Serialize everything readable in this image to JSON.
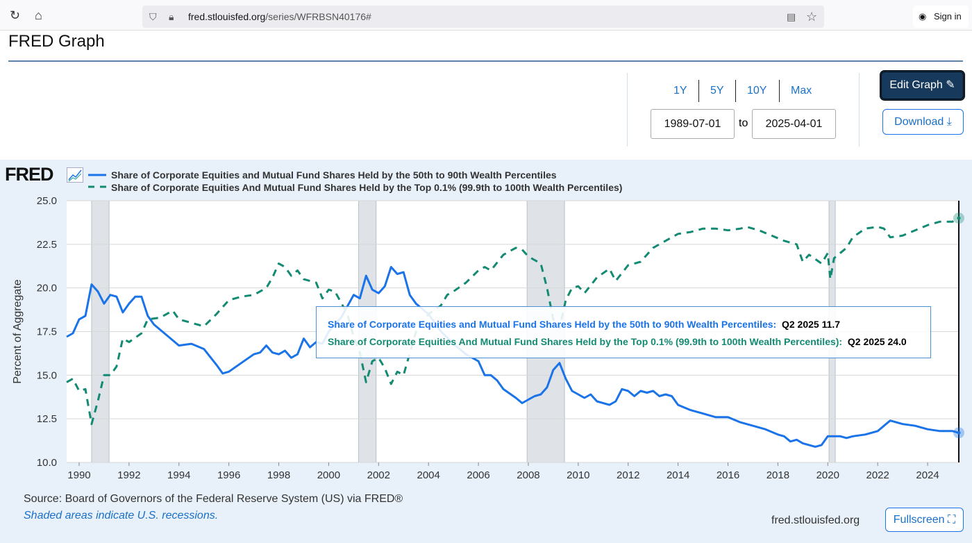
{
  "browser": {
    "url_host": "fred.stlouisfed.org",
    "url_path": "/series/WFRBSN40176#",
    "sign_in": "Sign in"
  },
  "header": {
    "title": "FRED Graph"
  },
  "controls": {
    "ranges": [
      "1Y",
      "5Y",
      "10Y",
      "Max"
    ],
    "start_date": "1989-07-01",
    "to": "to",
    "end_date": "2025-04-01",
    "edit_label": "Edit Graph",
    "download_label": "Download"
  },
  "logo": "FRED",
  "legend": {
    "series1": "Share of Corporate Equities and Mutual Fund Shares Held by the 50th to 90th Wealth Percentiles",
    "series2": "Share of Corporate Equities And Mutual Fund Shares Held by the Top 0.1% (99.9th to 100th Wealth Percentiles)"
  },
  "tooltip": {
    "s1_label": "Share of Corporate Equities and Mutual Fund Shares Held by the 50th to 90th Wealth Percentiles:",
    "s1_value": "Q2 2025 11.7",
    "s2_label": "Share of Corporate Equities And Mutual Fund Shares Held by the Top 0.1% (99.9th to 100th Wealth Percentiles):",
    "s2_value": "Q2 2025 24.0"
  },
  "footer": {
    "source": "Source: Board of Governors of the Federal Reserve System (US) via FRED®",
    "shaded": "Shaded areas indicate U.S. recessions.",
    "site": "fred.stlouisfed.org",
    "fullscreen": "Fullscreen"
  },
  "colors": {
    "series1": "#1a73e8",
    "series2": "#138a72",
    "recession": "#dfe3e8",
    "accent": "#173a5c"
  },
  "chart_data": {
    "type": "line",
    "ylabel": "Percent of Aggregate",
    "xlim": [
      1989.5,
      2025.25
    ],
    "ylim": [
      10,
      25
    ],
    "yticks": [
      "10.0",
      "12.5",
      "15.0",
      "17.5",
      "20.0",
      "22.5",
      "25.0"
    ],
    "xticks": [
      "1990",
      "1992",
      "1994",
      "1996",
      "1998",
      "2000",
      "2002",
      "2004",
      "2006",
      "2008",
      "2010",
      "2012",
      "2014",
      "2016",
      "2018",
      "2020",
      "2022",
      "2024"
    ],
    "recessions": [
      [
        1990.5,
        1991.2
      ],
      [
        2001.2,
        2001.9
      ],
      [
        2007.95,
        2009.45
      ],
      [
        2020.05,
        2020.3
      ]
    ],
    "series": [
      {
        "name": "50th to 90th",
        "style": "solid",
        "points": [
          [
            1989.5,
            17.2
          ],
          [
            1989.75,
            17.4
          ],
          [
            1990,
            18.2
          ],
          [
            1990.25,
            18.4
          ],
          [
            1990.5,
            20.2
          ],
          [
            1990.75,
            19.8
          ],
          [
            1991,
            19.1
          ],
          [
            1991.25,
            19.6
          ],
          [
            1991.5,
            19.5
          ],
          [
            1991.75,
            18.6
          ],
          [
            1992,
            19.1
          ],
          [
            1992.25,
            19.5
          ],
          [
            1992.5,
            19.5
          ],
          [
            1992.75,
            18.4
          ],
          [
            1993,
            17.9
          ],
          [
            1993.5,
            17.3
          ],
          [
            1994,
            16.7
          ],
          [
            1994.5,
            16.8
          ],
          [
            1995,
            16.5
          ],
          [
            1995.5,
            15.6
          ],
          [
            1995.75,
            15.1
          ],
          [
            1996,
            15.2
          ],
          [
            1996.5,
            15.7
          ],
          [
            1997,
            16.2
          ],
          [
            1997.25,
            16.3
          ],
          [
            1997.5,
            16.7
          ],
          [
            1997.75,
            16.3
          ],
          [
            1998,
            16.2
          ],
          [
            1998.25,
            16.4
          ],
          [
            1998.5,
            16.0
          ],
          [
            1998.75,
            16.2
          ],
          [
            1999,
            17.1
          ],
          [
            1999.25,
            16.6
          ],
          [
            1999.5,
            16.9
          ],
          [
            1999.75,
            16.8
          ],
          [
            2000,
            17.5
          ],
          [
            2000.5,
            18.3
          ],
          [
            2001,
            19.6
          ],
          [
            2001.25,
            19.4
          ],
          [
            2001.5,
            20.7
          ],
          [
            2001.75,
            19.9
          ],
          [
            2002,
            19.7
          ],
          [
            2002.25,
            20.1
          ],
          [
            2002.5,
            21.2
          ],
          [
            2002.75,
            20.8
          ],
          [
            2003,
            20.9
          ],
          [
            2003.25,
            19.6
          ],
          [
            2003.5,
            19.1
          ],
          [
            2004,
            18.5
          ],
          [
            2004.5,
            17.5
          ],
          [
            2005,
            16.8
          ],
          [
            2005.5,
            16.2
          ],
          [
            2006,
            15.8
          ],
          [
            2006.25,
            15.0
          ],
          [
            2006.5,
            15.0
          ],
          [
            2006.75,
            14.7
          ],
          [
            2007,
            14.2
          ],
          [
            2007.5,
            13.7
          ],
          [
            2007.75,
            13.4
          ],
          [
            2008,
            13.6
          ],
          [
            2008.25,
            13.8
          ],
          [
            2008.5,
            13.9
          ],
          [
            2008.75,
            14.3
          ],
          [
            2009,
            15.3
          ],
          [
            2009.25,
            15.7
          ],
          [
            2009.5,
            14.8
          ],
          [
            2009.75,
            14.1
          ],
          [
            2010,
            13.9
          ],
          [
            2010.25,
            13.7
          ],
          [
            2010.5,
            13.9
          ],
          [
            2010.75,
            13.5
          ],
          [
            2011.25,
            13.3
          ],
          [
            2011.5,
            13.5
          ],
          [
            2011.75,
            14.2
          ],
          [
            2012,
            14.1
          ],
          [
            2012.25,
            13.8
          ],
          [
            2012.5,
            14.1
          ],
          [
            2012.75,
            14.0
          ],
          [
            2013,
            14.1
          ],
          [
            2013.25,
            13.8
          ],
          [
            2013.5,
            13.9
          ],
          [
            2013.75,
            13.8
          ],
          [
            2014,
            13.3
          ],
          [
            2014.5,
            13.0
          ],
          [
            2015,
            12.8
          ],
          [
            2015.5,
            12.6
          ],
          [
            2016,
            12.6
          ],
          [
            2016.5,
            12.3
          ],
          [
            2017,
            12.1
          ],
          [
            2017.5,
            11.9
          ],
          [
            2018,
            11.6
          ],
          [
            2018.25,
            11.5
          ],
          [
            2018.5,
            11.2
          ],
          [
            2018.75,
            11.3
          ],
          [
            2019,
            11.1
          ],
          [
            2019.5,
            10.9
          ],
          [
            2019.75,
            11.0
          ],
          [
            2020,
            11.5
          ],
          [
            2020.5,
            11.5
          ],
          [
            2020.75,
            11.4
          ],
          [
            2021,
            11.5
          ],
          [
            2021.5,
            11.6
          ],
          [
            2022,
            11.8
          ],
          [
            2022.25,
            12.1
          ],
          [
            2022.5,
            12.4
          ],
          [
            2023,
            12.2
          ],
          [
            2023.5,
            12.1
          ],
          [
            2024,
            11.9
          ],
          [
            2024.5,
            11.8
          ],
          [
            2025,
            11.8
          ],
          [
            2025.25,
            11.7
          ]
        ]
      },
      {
        "name": "Top 0.1%",
        "style": "dashed",
        "points": [
          [
            1989.5,
            14.6
          ],
          [
            1989.75,
            14.8
          ],
          [
            1990,
            14.1
          ],
          [
            1990.25,
            14.2
          ],
          [
            1990.5,
            12.2
          ],
          [
            1990.75,
            13.5
          ],
          [
            1991,
            15.0
          ],
          [
            1991.25,
            15.0
          ],
          [
            1991.5,
            15.5
          ],
          [
            1991.75,
            17.1
          ],
          [
            1992,
            16.9
          ],
          [
            1992.5,
            17.4
          ],
          [
            1992.75,
            18.2
          ],
          [
            1993.25,
            18.3
          ],
          [
            1993.75,
            18.7
          ],
          [
            1994,
            18.2
          ],
          [
            1994.5,
            18.0
          ],
          [
            1995,
            17.8
          ],
          [
            1995.5,
            18.5
          ],
          [
            1996,
            19.3
          ],
          [
            1996.5,
            19.5
          ],
          [
            1997,
            19.6
          ],
          [
            1997.5,
            20.0
          ],
          [
            1997.75,
            20.6
          ],
          [
            1998,
            21.4
          ],
          [
            1998.25,
            21.2
          ],
          [
            1998.5,
            20.7
          ],
          [
            1998.75,
            21.0
          ],
          [
            1999,
            20.5
          ],
          [
            1999.5,
            20.3
          ],
          [
            1999.75,
            19.4
          ],
          [
            2000,
            19.9
          ],
          [
            2000.25,
            19.8
          ],
          [
            2000.75,
            18.5
          ],
          [
            2001,
            17.2
          ],
          [
            2001.25,
            16.3
          ],
          [
            2001.5,
            14.6
          ],
          [
            2001.75,
            15.8
          ],
          [
            2002,
            16.0
          ],
          [
            2002.25,
            15.4
          ],
          [
            2002.5,
            14.5
          ],
          [
            2002.75,
            15.2
          ],
          [
            2003,
            15.0
          ],
          [
            2003.5,
            17.5
          ],
          [
            2004,
            18.5
          ],
          [
            2004.5,
            19.0
          ],
          [
            2004.75,
            19.6
          ],
          [
            2005,
            19.8
          ],
          [
            2005.5,
            20.3
          ],
          [
            2006,
            21.0
          ],
          [
            2006.25,
            21.2
          ],
          [
            2006.5,
            21.0
          ],
          [
            2007,
            21.9
          ],
          [
            2007.5,
            22.3
          ],
          [
            2007.75,
            22.2
          ],
          [
            2008,
            21.8
          ],
          [
            2008.5,
            21.4
          ],
          [
            2008.75,
            20.0
          ],
          [
            2009,
            18.2
          ],
          [
            2009.25,
            17.7
          ],
          [
            2009.5,
            19.3
          ],
          [
            2009.75,
            20.0
          ],
          [
            2010,
            20.1
          ],
          [
            2010.25,
            19.7
          ],
          [
            2010.75,
            20.6
          ],
          [
            2011.25,
            21.1
          ],
          [
            2011.5,
            20.4
          ],
          [
            2012,
            21.3
          ],
          [
            2012.5,
            21.5
          ],
          [
            2013,
            22.3
          ],
          [
            2013.5,
            22.7
          ],
          [
            2014,
            23.1
          ],
          [
            2014.5,
            23.2
          ],
          [
            2015,
            23.4
          ],
          [
            2015.5,
            23.4
          ],
          [
            2016,
            23.3
          ],
          [
            2016.5,
            23.4
          ],
          [
            2016.75,
            23.5
          ],
          [
            2017.25,
            23.3
          ],
          [
            2017.75,
            23.0
          ],
          [
            2018.25,
            22.7
          ],
          [
            2018.75,
            22.5
          ],
          [
            2019,
            21.5
          ],
          [
            2019.25,
            21.9
          ],
          [
            2019.75,
            21.4
          ],
          [
            2020,
            22.0
          ],
          [
            2020.1,
            20.5
          ],
          [
            2020.25,
            21.7
          ],
          [
            2020.75,
            22.3
          ],
          [
            2021,
            22.9
          ],
          [
            2021.5,
            23.4
          ],
          [
            2022,
            23.5
          ],
          [
            2022.25,
            23.4
          ],
          [
            2022.5,
            22.9
          ],
          [
            2023,
            23.0
          ],
          [
            2023.5,
            23.3
          ],
          [
            2024,
            23.6
          ],
          [
            2024.5,
            23.8
          ],
          [
            2025,
            23.8
          ],
          [
            2025.25,
            24.0
          ]
        ]
      }
    ]
  }
}
